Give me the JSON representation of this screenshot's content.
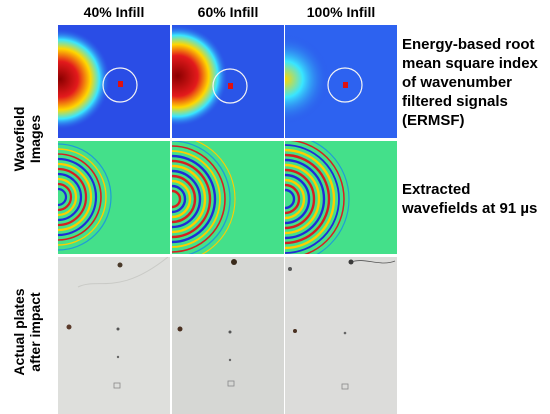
{
  "columns": [
    "40% Infill",
    "60% Infill",
    "100% Infill"
  ],
  "rows": [
    {
      "label_line1": "Wavefield",
      "label_line2": "Images"
    },
    {
      "label_line1": "Actual plates",
      "label_line2": "after impact"
    }
  ],
  "descriptions": {
    "ermsf": [
      "Energy-based root",
      "mean square index",
      "of wavenumber",
      "filtered signals",
      "(ERMSF)"
    ],
    "wavefields": [
      "Extracted",
      "wavefields at 91 µs"
    ]
  },
  "colors": {
    "jet_background": "#2a4de6",
    "field_green": "#44e08a",
    "plate_gray": "#dcdcda"
  }
}
